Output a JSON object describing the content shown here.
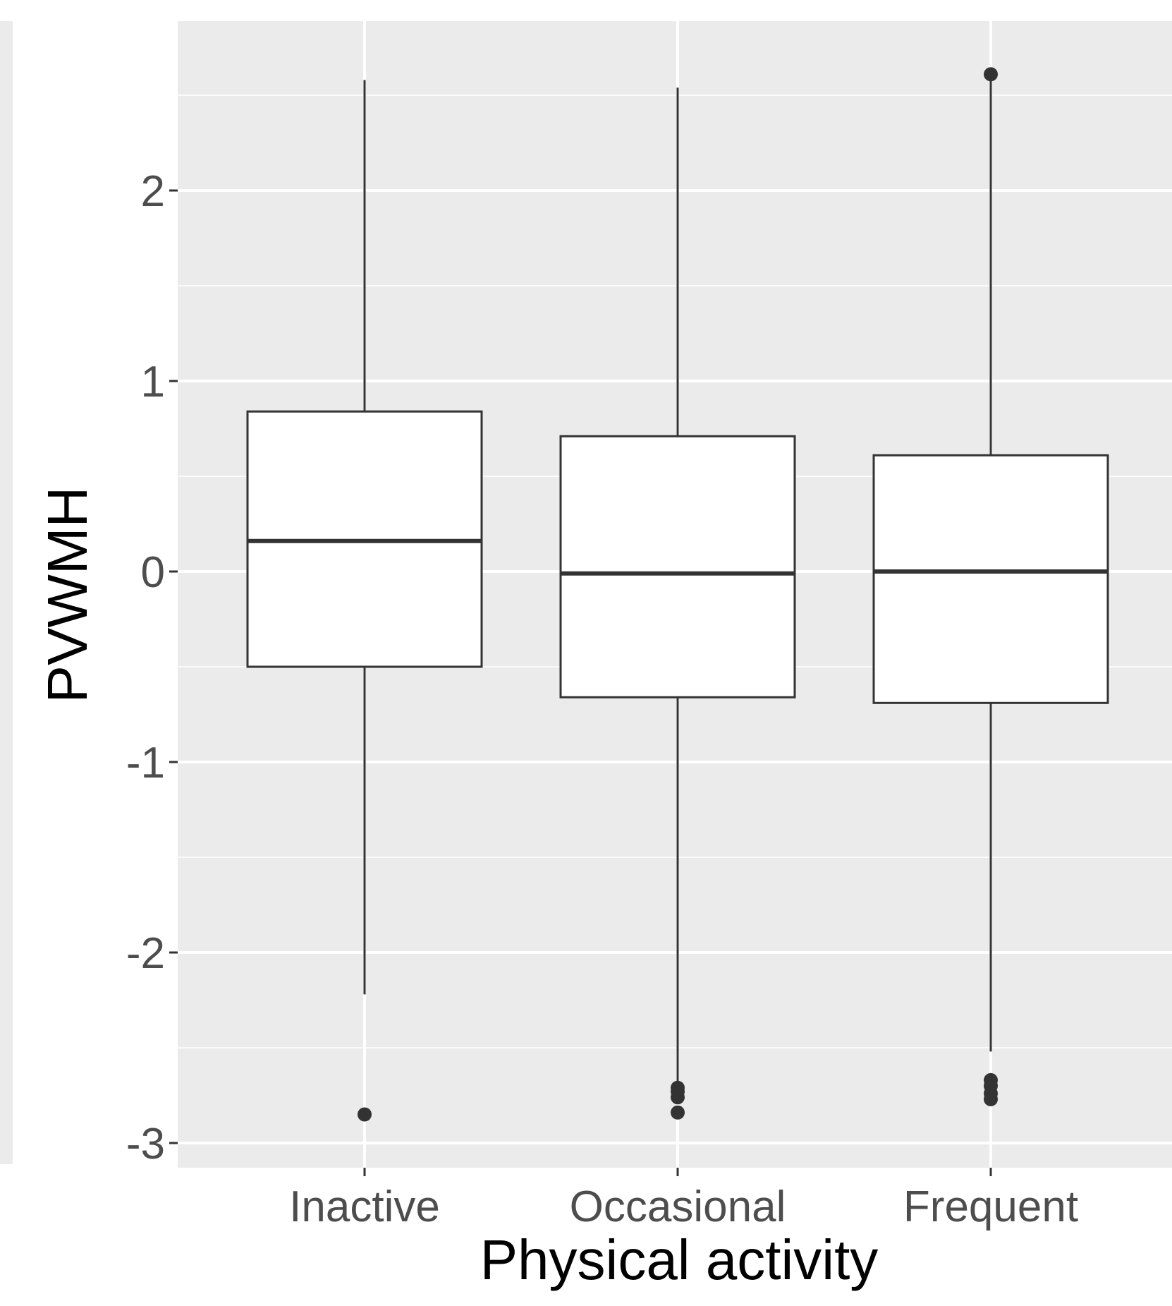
{
  "chart_data": {
    "type": "boxplot",
    "xlabel": "Physical activity",
    "ylabel": "PVWMH",
    "categories": [
      "Inactive",
      "Occasional",
      "Frequent"
    ],
    "ylim": [
      -3.05,
      2.9
    ],
    "y_ticks": [
      -3,
      -2,
      -1,
      0,
      1,
      2
    ],
    "y_tick_labels": [
      "-3",
      "-2",
      "-1",
      "0",
      "1",
      "2"
    ],
    "grid": true,
    "panel_background": "#EBEBEB",
    "gridline_color": "#FFFFFF",
    "box_fill": "#FFFFFF",
    "box_stroke": "#333333",
    "boxes": [
      {
        "category": "Inactive",
        "whisker_low": -2.22,
        "q1": -0.5,
        "median": 0.16,
        "q3": 0.84,
        "whisker_high": 2.58,
        "outliers": [
          -2.85
        ]
      },
      {
        "category": "Occasional",
        "whisker_low": -2.68,
        "q1": -0.66,
        "median": -0.01,
        "q3": 0.71,
        "whisker_high": 2.54,
        "outliers": [
          -2.71,
          -2.73,
          -2.76,
          -2.84
        ]
      },
      {
        "category": "Frequent",
        "whisker_low": -2.52,
        "q1": -0.69,
        "median": 0.0,
        "q3": 0.61,
        "whisker_high": 2.6,
        "outliers": [
          2.61,
          -2.67,
          -2.7,
          -2.74,
          -2.77
        ]
      }
    ]
  }
}
